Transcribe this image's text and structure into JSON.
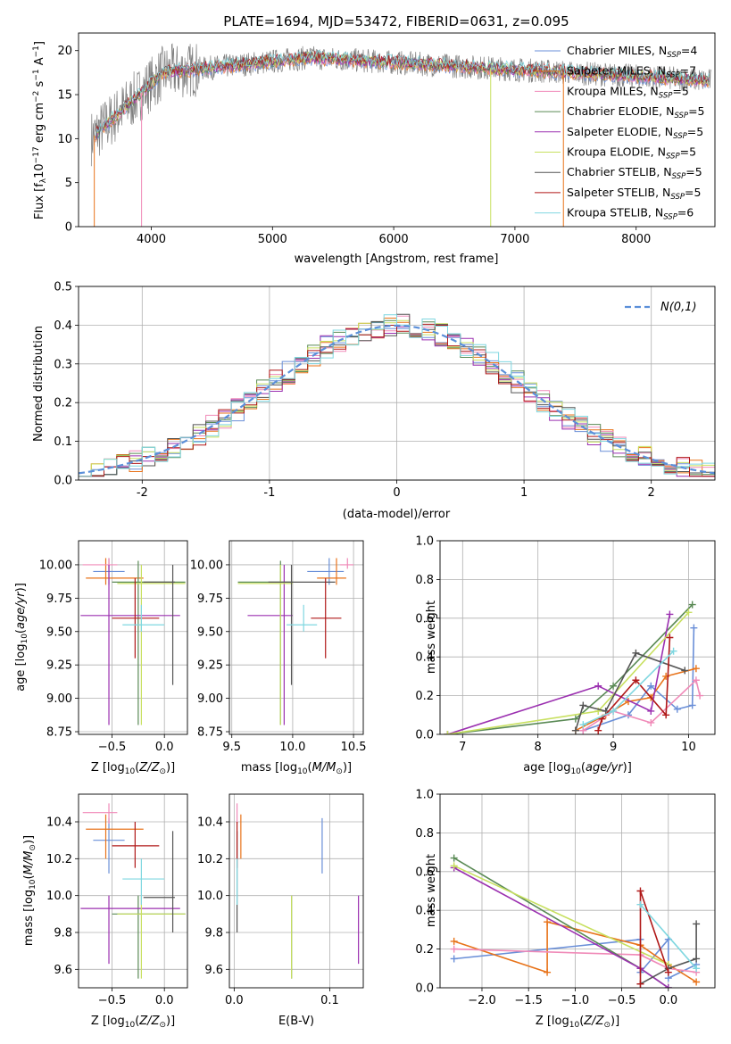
{
  "figure": {
    "title": "PLATE=1694, MJD=53472, FIBERID=0631, z=0.095"
  },
  "colors": {
    "Chabrier MILES": "#6a8fd8",
    "Salpeter MILES": "#e8731a",
    "Kroupa MILES": "#f08ab8",
    "Chabrier ELODIE": "#5a8a55",
    "Salpeter ELODIE": "#9b30b0",
    "Kroupa ELODIE": "#c8e060",
    "Chabrier STELIB": "#555555",
    "Salpeter STELIB": "#b01818",
    "Kroupa STELIB": "#7fd7e0",
    "data": "#808080",
    "grid": "#b0b0b0"
  },
  "chart_data": [
    {
      "id": "spectrum",
      "type": "line",
      "title": "PLATE=1694, MJD=53472, FIBERID=0631, z=0.095",
      "xlabel": "wavelength [Angstrom, rest frame]",
      "ylabel": "Flux [f_λ 10^-17 erg cm^-2 s^-1 A^-1]",
      "xlim": [
        3400,
        8650
      ],
      "ylim": [
        0,
        22
      ],
      "xticks": [
        4000,
        5000,
        6000,
        7000,
        8000
      ],
      "yticks": [
        0,
        5,
        10,
        15,
        20
      ],
      "grid": false,
      "legend_position": "upper-right",
      "data_points": {
        "x": [
          3500,
          3550,
          3600,
          3700,
          3800,
          3900,
          4000,
          4100,
          4200,
          4400,
          4600,
          4800,
          5000,
          5200,
          5400,
          5600,
          5800,
          6000,
          6200,
          6400,
          6600,
          6800,
          7000,
          7200,
          7400,
          7600,
          7800,
          8000,
          8200,
          8400
        ],
        "y": [
          10,
          12,
          14,
          15.5,
          16.5,
          17,
          17.5,
          18,
          18,
          18.5,
          18.7,
          19,
          19.2,
          19.3,
          19.3,
          19.2,
          19,
          18.8,
          18.6,
          18.5,
          18.3,
          18.2,
          18,
          17.9,
          17.8,
          17.6,
          17.4,
          17.2,
          17,
          16.8
        ]
      },
      "series": [
        {
          "name": "Chabrier MILES",
          "n_ssp": "4"
        },
        {
          "name": "Salpeter MILES",
          "n_ssp": "7"
        },
        {
          "name": "Kroupa MILES",
          "n_ssp": "5"
        },
        {
          "name": "Chabrier ELODIE",
          "n_ssp": "5"
        },
        {
          "name": "Salpeter ELODIE",
          "n_ssp": "5"
        },
        {
          "name": "Kroupa ELODIE",
          "n_ssp": "5"
        },
        {
          "name": "Chabrier STELIB",
          "n_ssp": "5"
        },
        {
          "name": "Salpeter STELIB",
          "n_ssp": "5"
        },
        {
          "name": "Kroupa STELIB",
          "n_ssp": "6"
        }
      ]
    },
    {
      "id": "residuals",
      "type": "line",
      "xlabel": "(data-model)/error",
      "ylabel": "Normed distribution",
      "xlim": [
        -2.5,
        2.5
      ],
      "ylim": [
        0,
        0.5
      ],
      "xticks": [
        -2,
        -1,
        0,
        1,
        2
      ],
      "yticks": [
        0.0,
        0.1,
        0.2,
        0.3,
        0.4,
        0.5
      ],
      "grid": true,
      "legend_position": "upper-right",
      "legend_label": "N(0,1)",
      "bin_width": 0.1
    },
    {
      "id": "age_Z",
      "type": "scatter",
      "xlabel": "Z [log10(Z/Z⊙)]",
      "ylabel": "age  [log10(age/yr)]",
      "xlim": [
        -0.82,
        0.22
      ],
      "ylim": [
        8.73,
        10.18
      ],
      "xticks": [
        -0.5,
        0.0
      ],
      "yticks": [
        8.75,
        9.0,
        9.25,
        9.5,
        9.75,
        10.0
      ],
      "grid": true
    },
    {
      "id": "age_mass",
      "type": "scatter",
      "xlabel": "mass [log10(M/M⊙)]",
      "ylabel": "",
      "xlim": [
        9.48,
        10.58
      ],
      "ylim": [
        8.73,
        10.18
      ],
      "xticks": [
        9.5,
        10.0,
        10.5
      ],
      "yticks": [
        8.75,
        9.0,
        9.25,
        9.5,
        9.75,
        10.0
      ],
      "grid": true
    },
    {
      "id": "mw_age",
      "type": "line",
      "xlabel": "age  [log10(age/yr)]",
      "ylabel": "mass weight",
      "xlim": [
        6.7,
        10.35
      ],
      "ylim": [
        0,
        1.0
      ],
      "xticks": [
        7,
        8,
        9,
        10
      ],
      "yticks": [
        0.0,
        0.2,
        0.4,
        0.6,
        0.8,
        1.0
      ],
      "grid": true
    },
    {
      "id": "mass_Z",
      "type": "scatter",
      "xlabel": "Z [log10(Z/Z⊙)]",
      "ylabel": "mass [log10(M/M⊙)]",
      "xlim": [
        -0.82,
        0.22
      ],
      "ylim": [
        9.5,
        10.55
      ],
      "xticks": [
        -0.5,
        0.0
      ],
      "yticks": [
        9.6,
        9.8,
        10.0,
        10.2,
        10.4
      ],
      "grid": true
    },
    {
      "id": "mass_EBV",
      "type": "scatter",
      "xlabel": "E(B-V)",
      "ylabel": "",
      "xlim": [
        -0.005,
        0.135
      ],
      "ylim": [
        9.5,
        10.55
      ],
      "xticks": [
        0.0,
        0.1
      ],
      "yticks": [
        9.6,
        9.8,
        10.0,
        10.2,
        10.4
      ],
      "grid": true
    },
    {
      "id": "mw_Z",
      "type": "line",
      "xlabel": "Z [log10(Z/Z⊙)]",
      "ylabel": "mass weight",
      "xlim": [
        -2.45,
        0.5
      ],
      "ylim": [
        0,
        1.0
      ],
      "xticks": [
        -2.0,
        -1.5,
        -1.0,
        -0.5,
        0.0
      ],
      "yticks": [
        0.0,
        0.2,
        0.4,
        0.6,
        0.8,
        1.0
      ],
      "grid": true
    }
  ],
  "fits": [
    {
      "name": "Chabrier MILES",
      "Z": -0.53,
      "Zlo": -0.68,
      "Zhi": -0.38,
      "age": 9.95,
      "agelo": 9.85,
      "agehi": 10.05,
      "mass": 10.3,
      "masslo": 10.12,
      "masshi": 10.42,
      "ebv": 0.092,
      "ebvlo": 0.092,
      "ebvhi": 0.092,
      "mw_age": [
        [
          8.6,
          0.02
        ],
        [
          9.2,
          0.1
        ],
        [
          9.5,
          0.25
        ],
        [
          9.85,
          0.13
        ],
        [
          10.05,
          0.15
        ],
        [
          10.07,
          0.55
        ]
      ],
      "mw_Z": [
        [
          -2.3,
          0.15
        ],
        [
          -0.3,
          0.25
        ],
        [
          -0.3,
          0.08
        ],
        [
          0.0,
          0.25
        ],
        [
          0.0,
          0.05
        ],
        [
          0.3,
          0.12
        ]
      ]
    },
    {
      "name": "Salpeter MILES",
      "Z": -0.56,
      "Zlo": -0.75,
      "Zhi": -0.2,
      "age": 9.9,
      "agelo": 9.85,
      "agehi": 10.05,
      "mass": 10.36,
      "masslo": 10.2,
      "masshi": 10.44,
      "ebv": 0.007,
      "ebvlo": 0.007,
      "ebvhi": 0.007,
      "mw_age": [
        [
          8.5,
          0.02
        ],
        [
          8.9,
          0.1
        ],
        [
          9.2,
          0.17
        ],
        [
          9.5,
          0.19
        ],
        [
          9.7,
          0.3
        ],
        [
          10.1,
          0.34
        ]
      ],
      "mw_Z": [
        [
          -2.3,
          0.24
        ],
        [
          -1.3,
          0.08
        ],
        [
          -1.3,
          0.34
        ],
        [
          -0.3,
          0.22
        ],
        [
          0.0,
          0.12
        ],
        [
          0.3,
          0.03
        ]
      ]
    },
    {
      "name": "Kroupa MILES",
      "Z": -0.53,
      "Zlo": -0.78,
      "Zhi": -0.45,
      "age": 10.0,
      "agelo": 9.97,
      "agehi": 10.05,
      "mass": 10.45,
      "masslo": 10.39,
      "masshi": 10.5,
      "ebv": 0.003,
      "ebvlo": 0.003,
      "ebvhi": 0.003,
      "mw_age": [
        [
          8.6,
          0.02
        ],
        [
          9.0,
          0.12
        ],
        [
          9.5,
          0.06
        ],
        [
          10.1,
          0.28
        ],
        [
          10.15,
          0.2
        ]
      ],
      "mw_Z": [
        [
          -2.3,
          0.2
        ],
        [
          -0.3,
          0.17
        ],
        [
          0.0,
          0.1
        ],
        [
          0.3,
          0.08
        ]
      ]
    },
    {
      "name": "Chabrier ELODIE",
      "Z": -0.25,
      "Zlo": -0.5,
      "Zhi": 0.2,
      "age": 9.87,
      "agelo": 8.8,
      "agehi": 10.03,
      "mass": 9.9,
      "masslo": 9.55,
      "masshi": 10.0,
      "ebv": 0.06,
      "ebvlo": 0.06,
      "ebvhi": 0.06,
      "mw_age": [
        [
          6.8,
          0.0
        ],
        [
          8.5,
          0.08
        ],
        [
          9.0,
          0.25
        ],
        [
          10.05,
          0.67
        ]
      ],
      "mw_Z": [
        [
          -2.3,
          0.67
        ],
        [
          -0.3,
          0.1
        ],
        [
          0.0,
          0.0
        ]
      ]
    },
    {
      "name": "Salpeter ELODIE",
      "Z": -0.53,
      "Zlo": -0.8,
      "Zhi": 0.15,
      "age": 9.62,
      "agelo": 8.8,
      "agehi": 10.0,
      "mass": 9.93,
      "masslo": 9.63,
      "masshi": 10.0,
      "ebv": 0.13,
      "ebvlo": 0.13,
      "ebvhi": 0.13,
      "mw_age": [
        [
          6.8,
          0.0
        ],
        [
          8.8,
          0.25
        ],
        [
          9.5,
          0.12
        ],
        [
          9.75,
          0.62
        ]
      ],
      "mw_Z": [
        [
          -2.3,
          0.62
        ],
        [
          -0.3,
          0.1
        ],
        [
          0.0,
          0.0
        ]
      ]
    },
    {
      "name": "Kroupa ELODIE",
      "Z": -0.22,
      "Zlo": -0.45,
      "Zhi": 0.2,
      "age": 9.86,
      "agelo": 8.8,
      "agehi": 10.0,
      "mass": 9.9,
      "masslo": 9.55,
      "masshi": 10.0,
      "ebv": 0.06,
      "ebvlo": 0.06,
      "ebvhi": 0.06,
      "mw_age": [
        [
          6.8,
          0.0
        ],
        [
          8.8,
          0.12
        ],
        [
          10.0,
          0.63
        ]
      ],
      "mw_Z": [
        [
          -2.3,
          0.63
        ],
        [
          0.0,
          0.12
        ]
      ]
    },
    {
      "name": "Chabrier STELIB",
      "Z": 0.08,
      "Zlo": -0.2,
      "Zhi": 0.1,
      "age": 9.87,
      "agelo": 9.1,
      "agehi": 10.0,
      "mass": 9.99,
      "masslo": 9.8,
      "masshi": 10.35,
      "ebv": 0.003,
      "ebvlo": 0.003,
      "ebvhi": 0.003,
      "mw_age": [
        [
          8.5,
          0.02
        ],
        [
          8.6,
          0.15
        ],
        [
          8.9,
          0.12
        ],
        [
          9.3,
          0.42
        ],
        [
          9.95,
          0.33
        ]
      ],
      "mw_Z": [
        [
          -0.3,
          0.02
        ],
        [
          0.0,
          0.1
        ],
        [
          0.3,
          0.15
        ],
        [
          0.3,
          0.33
        ]
      ]
    },
    {
      "name": "Salpeter STELIB",
      "Z": -0.28,
      "Zlo": -0.5,
      "Zhi": -0.05,
      "age": 9.6,
      "agelo": 9.3,
      "agehi": 9.9,
      "mass": 10.27,
      "masslo": 10.15,
      "masshi": 10.4,
      "ebv": 0.003,
      "ebvlo": 0.003,
      "ebvhi": 0.003,
      "mw_age": [
        [
          8.8,
          0.02
        ],
        [
          8.85,
          0.08
        ],
        [
          9.3,
          0.28
        ],
        [
          9.7,
          0.1
        ],
        [
          9.75,
          0.5
        ]
      ],
      "mw_Z": [
        [
          -0.3,
          0.02
        ],
        [
          -0.3,
          0.5
        ],
        [
          0.0,
          0.08
        ]
      ]
    },
    {
      "name": "Kroupa STELIB",
      "Z": -0.22,
      "Zlo": -0.4,
      "Zhi": 0.0,
      "age": 9.55,
      "agelo": 9.5,
      "agehi": 9.7,
      "mass": 10.09,
      "masslo": 9.95,
      "masshi": 10.2,
      "ebv": 0.003,
      "ebvlo": 0.003,
      "ebvhi": 0.003,
      "mw_age": [
        [
          8.6,
          0.05
        ],
        [
          9.0,
          0.12
        ],
        [
          9.8,
          0.43
        ]
      ],
      "mw_Z": [
        [
          -0.3,
          0.43
        ],
        [
          0.3,
          0.1
        ]
      ]
    }
  ]
}
